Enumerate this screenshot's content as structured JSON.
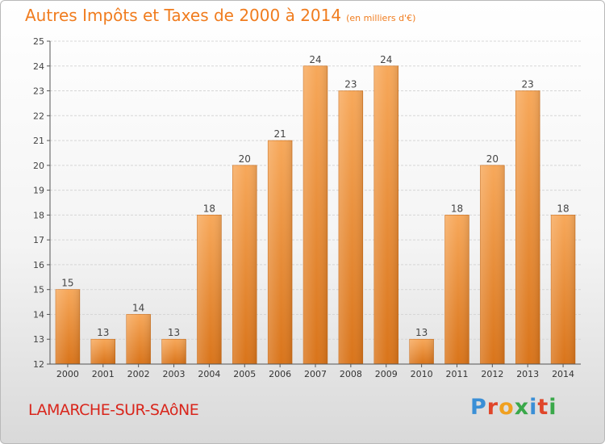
{
  "header": {
    "title": "Autres Impôts et Taxes de 2000 à 2014",
    "unit": "(en milliers d'€)"
  },
  "footer": {
    "city": "LAMARCHE-SUR-SAôNE",
    "logo": {
      "text": "Proxiti",
      "colors": [
        "#3a8fd6",
        "#e0462a",
        "#f0a020",
        "#3aa84a",
        "#3a8fd6",
        "#e0462a",
        "#3aa84a"
      ]
    }
  },
  "colors": {
    "title": "#f07c1e",
    "city": "#d9261c",
    "bar_top": "#f7a85a",
    "bar_bottom": "#d9741a",
    "grid": "#d6d6d6",
    "axis": "#555555"
  },
  "chart_data": {
    "type": "bar",
    "title": "Autres Impôts et Taxes de 2000 à 2014",
    "subtitle": "(en milliers d'€)",
    "xlabel": "",
    "ylabel": "",
    "categories": [
      "2000",
      "2001",
      "2002",
      "2003",
      "2004",
      "2005",
      "2006",
      "2007",
      "2008",
      "2009",
      "2010",
      "2011",
      "2012",
      "2013",
      "2014"
    ],
    "values": [
      15,
      13,
      14,
      13,
      18,
      20,
      21,
      24,
      23,
      24,
      13,
      18,
      20,
      23,
      18
    ],
    "ylim": [
      12,
      25
    ],
    "yticks": [
      12,
      13,
      14,
      15,
      16,
      17,
      18,
      19,
      20,
      21,
      22,
      23,
      24,
      25
    ],
    "grid": true,
    "data_labels": true
  }
}
